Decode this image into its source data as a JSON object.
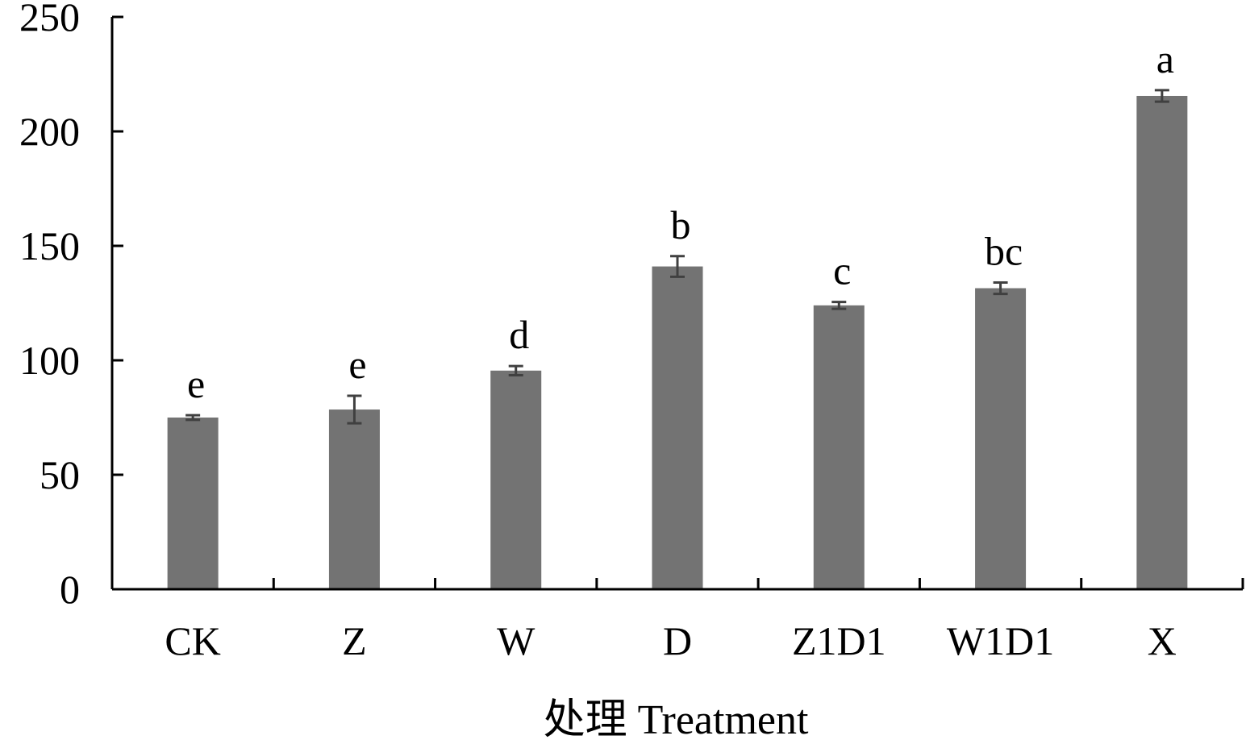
{
  "chart_data": {
    "type": "bar",
    "title": "",
    "xlabel": "处理 Treatment",
    "ylabel": "",
    "ylim": [
      0,
      250
    ],
    "yticks": [
      0,
      50,
      100,
      150,
      200,
      250
    ],
    "ytick_labels": [
      "0",
      "50",
      "100",
      "150",
      "200",
      "250"
    ],
    "grid": false,
    "legend": "none",
    "bar_color": "#737373",
    "error_color": "#404040",
    "axis_color": "#000000",
    "categories": [
      "CK",
      "Z",
      "W",
      "D",
      "Z1D1",
      "W1D1",
      "X"
    ],
    "values": [
      75,
      78.5,
      95.5,
      141,
      124,
      131.5,
      215.5
    ],
    "errors": [
      1,
      6,
      2,
      4.5,
      1.5,
      2.5,
      2.5
    ],
    "significance": [
      "e",
      "e",
      "d",
      "b",
      "c",
      "bc",
      "a"
    ]
  }
}
